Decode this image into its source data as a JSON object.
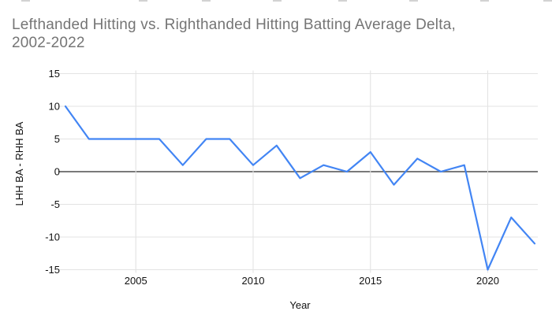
{
  "title": {
    "line1": "Lefthanded Hitting vs. Righthanded Hitting Batting Average Delta,",
    "line2": "2002-2022"
  },
  "chart_data": {
    "type": "line",
    "title": "Lefthanded Hitting vs. Righthanded Hitting Batting Average Delta, 2002-2022",
    "xlabel": "Year",
    "ylabel": "LHH BA - RHH BA",
    "x": [
      2002,
      2003,
      2004,
      2005,
      2006,
      2007,
      2008,
      2009,
      2010,
      2011,
      2012,
      2013,
      2014,
      2015,
      2016,
      2017,
      2018,
      2019,
      2020,
      2021,
      2022
    ],
    "values": [
      10,
      5,
      5,
      5,
      5,
      1,
      5,
      5,
      1,
      4,
      -1,
      1,
      0,
      3,
      -2,
      2,
      0,
      1,
      -15,
      -7,
      -11
    ],
    "ylim": [
      -15,
      15
    ],
    "yticks": [
      15,
      10,
      5,
      0,
      -5,
      -10,
      -15
    ],
    "xticks": [
      2005,
      2010,
      2015,
      2020
    ],
    "grid": true,
    "legend": "none",
    "colors": {
      "line": "#4285f4",
      "zero_axis": "#666666",
      "gridline": "#e3e3e3",
      "title_text": "#757575",
      "tick_text": "#111111"
    }
  }
}
